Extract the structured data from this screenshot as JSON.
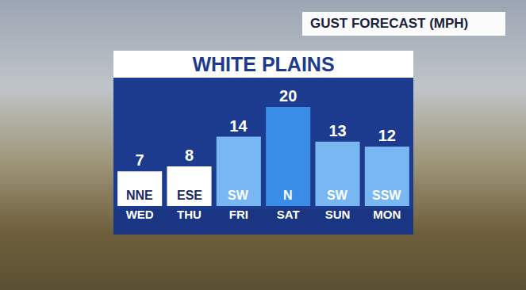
{
  "chart_data": {
    "type": "bar",
    "title": "WHITE PLAINS",
    "subtitle": "GUST FORECAST (MPH)",
    "categories": [
      "WED",
      "THU",
      "FRI",
      "SAT",
      "SUN",
      "MON"
    ],
    "values": [
      7,
      8,
      14,
      20,
      13,
      12
    ],
    "directions": [
      "NNE",
      "ESE",
      "SW",
      "N",
      "SW",
      "SSW"
    ],
    "colors": [
      "#ffffff",
      "#ffffff",
      "#79b7f2",
      "#3a8de6",
      "#79b7f2",
      "#79b7f2"
    ],
    "ylim": [
      0,
      24
    ],
    "data_labels": true,
    "tick_labels": "x"
  }
}
